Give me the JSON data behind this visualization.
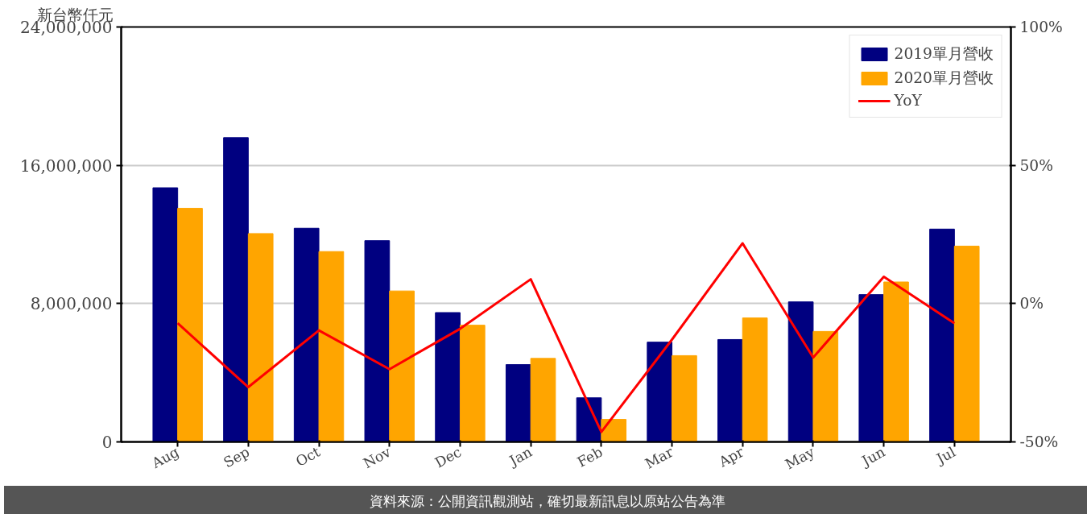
{
  "chart_data": {
    "type": "bar",
    "ylabel": "新台幣仟元",
    "categories": [
      "Aug",
      "Sep",
      "Oct",
      "Nov",
      "Dec",
      "Jan",
      "Feb",
      "Mar",
      "Apr",
      "May",
      "Jun",
      "Jul"
    ],
    "series": [
      {
        "name": "2019單月營收",
        "color": "#000080",
        "values": [
          14700000,
          17600000,
          12360000,
          11640000,
          7480000,
          4470000,
          2550000,
          5770000,
          5920000,
          8100000,
          8520000,
          12310000
        ]
      },
      {
        "name": "2020單月營收",
        "color": "#ffa500",
        "values": [
          13510000,
          12050000,
          11010000,
          8730000,
          6750000,
          4830000,
          1300000,
          4990000,
          7170000,
          6390000,
          9250000,
          11320000
        ]
      },
      {
        "name": "YoY",
        "type": "line",
        "axis": "y2",
        "color": "#ff0000",
        "values": [
          -7.1,
          -30.2,
          -9.7,
          -23.7,
          -9.1,
          8.8,
          -46.4,
          -13,
          21.8,
          -19.5,
          9.7,
          -7.1
        ]
      }
    ],
    "ylim": [
      0,
      24000000
    ],
    "yticks": [
      {
        "value": 0,
        "label": "0"
      },
      {
        "value": 8000000,
        "label": "8,000,000"
      },
      {
        "value": 16000000,
        "label": "16,000,000"
      },
      {
        "value": 24000000,
        "label": "24,000,000"
      }
    ],
    "y2lim": [
      -50,
      100
    ],
    "y2ticks": [
      {
        "value": -50,
        "label": "-50%"
      },
      {
        "value": 0,
        "label": "0%"
      },
      {
        "value": 50,
        "label": "50%"
      },
      {
        "value": 100,
        "label": "100%"
      }
    ],
    "grid": "y",
    "legend": "top right",
    "annotations": [
      "資料來源：公開資訊觀測站，確切最新訊息以原站公告為準"
    ]
  }
}
